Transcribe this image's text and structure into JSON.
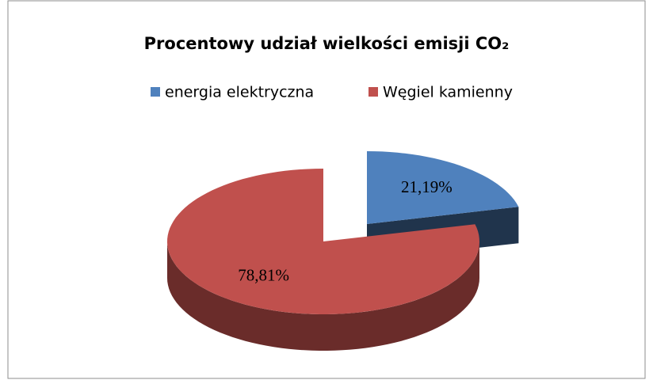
{
  "chart_data": {
    "type": "pie",
    "title": "Procentowy udział wielkości emisji CO₂",
    "categories": [
      "energia elektryczna",
      "Węgiel kamienny"
    ],
    "values": [
      21.19,
      78.81
    ],
    "value_labels": [
      "21,19%",
      "78,81%"
    ],
    "colors": [
      "#4f81bd",
      "#c0504d"
    ],
    "legend": "top"
  }
}
